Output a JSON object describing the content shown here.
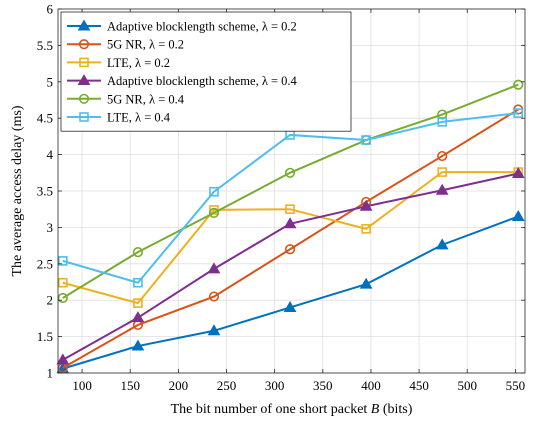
{
  "chart_data": {
    "type": "line",
    "xlabel": "The bit number of one short packet",
    "xlabel_var": "B",
    "xlabel_unit": "(bits)",
    "ylabel": "The average access delay (ms)",
    "xlim": [
      75,
      560
    ],
    "ylim": [
      1,
      6
    ],
    "xticks": [
      100,
      150,
      200,
      250,
      300,
      350,
      400,
      450,
      500,
      550
    ],
    "yticks": [
      1,
      1.5,
      2,
      2.5,
      3,
      3.5,
      4,
      4.5,
      5,
      5.5,
      6
    ],
    "grid": true,
    "legend_position": "top-left",
    "x": [
      80,
      158,
      237,
      316,
      395,
      474,
      553
    ],
    "series": [
      {
        "name": "Adaptive blocklength scheme, λ = 0.2",
        "marker": "triangle",
        "color": "#0072BD",
        "values": [
          1.06,
          1.37,
          1.58,
          1.9,
          2.22,
          2.76,
          3.15
        ]
      },
      {
        "name": "5G NR, λ = 0.2",
        "marker": "circle",
        "color": "#D95319",
        "values": [
          1.07,
          1.66,
          2.05,
          2.7,
          3.35,
          3.98,
          4.62
        ]
      },
      {
        "name": "LTE, λ = 0.2",
        "marker": "square",
        "color": "#EDB120",
        "values": [
          2.24,
          1.96,
          3.24,
          3.25,
          2.98,
          3.76,
          3.76
        ]
      },
      {
        "name": "Adaptive blocklength scheme, λ = 0.4",
        "marker": "triangle",
        "color": "#7E2F8E",
        "values": [
          1.18,
          1.76,
          2.43,
          3.05,
          3.29,
          3.51,
          3.74
        ]
      },
      {
        "name": "5G NR, λ = 0.4",
        "marker": "circle",
        "color": "#77AC30",
        "values": [
          2.03,
          2.66,
          3.2,
          3.75,
          4.2,
          4.55,
          4.96
        ]
      },
      {
        "name": "LTE, λ = 0.4",
        "marker": "square",
        "color": "#4DBEEE",
        "values": [
          2.54,
          2.24,
          3.49,
          4.27,
          4.2,
          4.45,
          4.57
        ]
      }
    ]
  }
}
